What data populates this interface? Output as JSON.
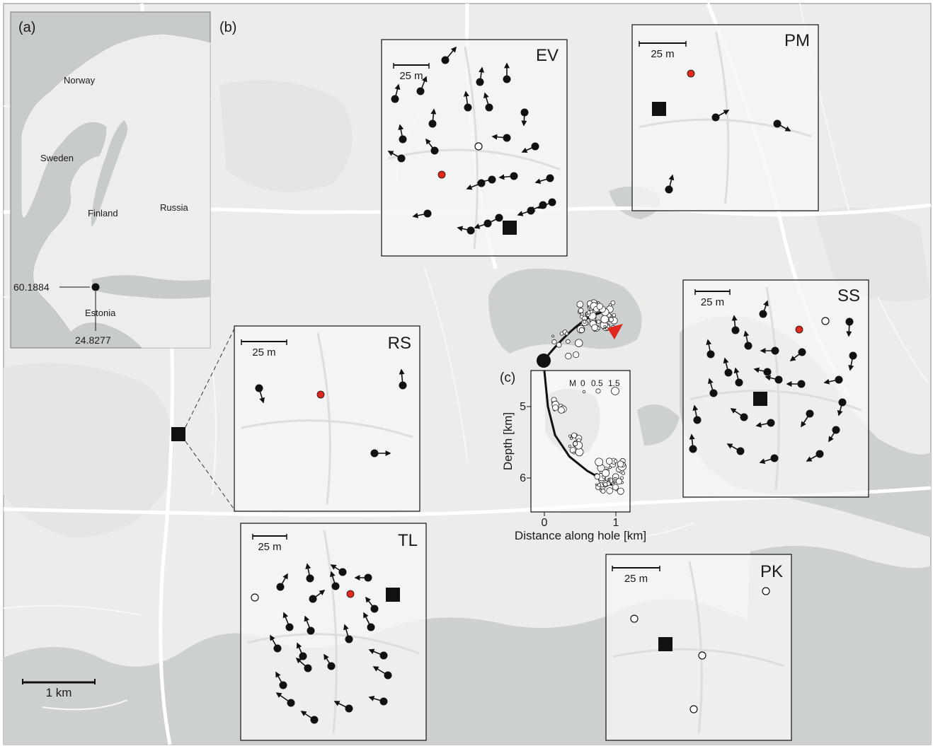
{
  "panel_labels": {
    "a": "(a)",
    "b": "(b)",
    "c": "(c)"
  },
  "overview": {
    "countries": [
      "Norway",
      "Sweden",
      "Finland",
      "Russia",
      "Estonia"
    ],
    "lat_label": "60.1884",
    "lon_label": "24.8277"
  },
  "main_scale": "1 km",
  "insets": {
    "EV": {
      "name": "EV",
      "scale": "25 m"
    },
    "PM": {
      "name": "PM",
      "scale": "25 m"
    },
    "RS": {
      "name": "RS",
      "scale": "25 m"
    },
    "SS": {
      "name": "SS",
      "scale": "25 m"
    },
    "TL": {
      "name": "TL",
      "scale": "25 m"
    },
    "PK": {
      "name": "PK",
      "scale": "25 m"
    }
  },
  "chart_data": {
    "type": "scatter",
    "xlabel": "Distance along hole [km]",
    "ylabel": "Depth [km]",
    "xticks": [
      "0",
      "1"
    ],
    "yticks": [
      "5",
      "6"
    ],
    "xlim": [
      -0.1,
      1.2
    ],
    "ylim": [
      4.5,
      6.5
    ],
    "legend": {
      "title": "M",
      "values": [
        "0",
        "0.5",
        "1.5"
      ]
    },
    "hole_trajectory": [
      [
        0,
        4.5
      ],
      [
        0.05,
        5.0
      ],
      [
        0.15,
        5.4
      ],
      [
        0.35,
        5.7
      ],
      [
        0.6,
        5.9
      ],
      [
        0.95,
        6.1
      ]
    ]
  },
  "colors": {
    "water": "#c9ccce",
    "land": "#e9ebea",
    "red": "#e0281e",
    "ink": "#111111"
  }
}
